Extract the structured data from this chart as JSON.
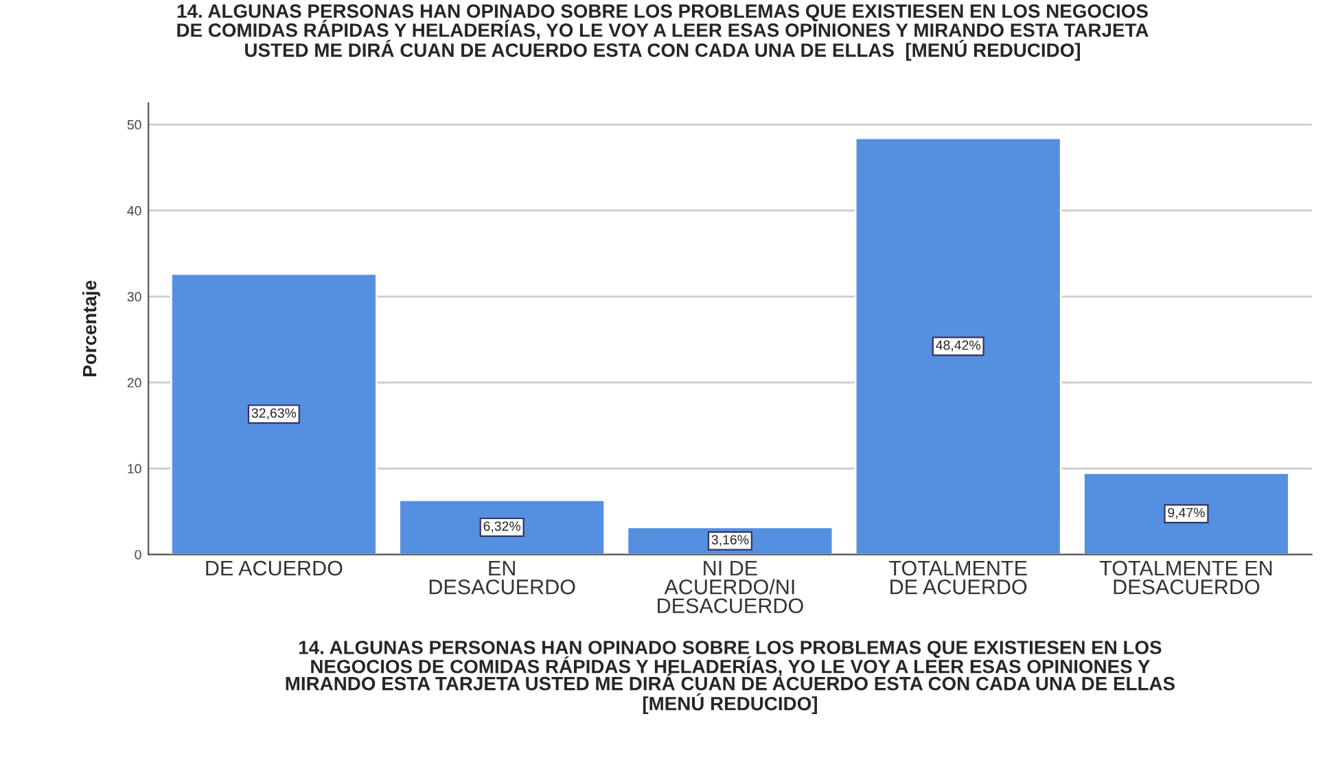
{
  "chart_data": {
    "type": "bar",
    "title": "14. ALGUNAS PERSONAS HAN OPINADO SOBRE LOS PROBLEMAS QUE EXISTIESEN EN LOS NEGOCIOS\nDE COMIDAS RÁPIDAS Y HELADERÍAS, YO LE VOY A LEER ESAS OPINIONES Y MIRANDO ESTA TARJETA\nUSTED ME DIRÁ CUAN DE ACUERDO ESTA CON CADA UNA DE ELLAS  [MENÚ REDUCIDO]",
    "xlabel": "14. ALGUNAS PERSONAS HAN OPINADO SOBRE LOS PROBLEMAS QUE EXISTIESEN EN LOS\nNEGOCIOS DE COMIDAS RÁPIDAS Y HELADERÍAS, YO LE VOY A LEER ESAS OPINIONES Y\nMIRANDO ESTA TARJETA USTED ME DIRÁ CUAN DE ACUERDO ESTA CON CADA UNA DE ELLAS\n[MENÚ REDUCIDO]",
    "ylabel": "Porcentaje",
    "categories": [
      "DE ACUERDO",
      "EN\nDESACUERDO",
      "NI DE\nACUERDO/NI\nDESACUERDO",
      "TOTALMENTE\nDE ACUERDO",
      "TOTALMENTE EN\nDESACUERDO"
    ],
    "values": [
      32.63,
      6.32,
      3.16,
      48.42,
      9.47
    ],
    "value_labels": [
      "32,63%",
      "6,32%",
      "3,16%",
      "48,42%",
      "9,47%"
    ],
    "color": "#5590e0",
    "ylim": [
      0,
      52.5
    ],
    "yticks": [
      0,
      10,
      20,
      30,
      40,
      50
    ],
    "grid": "y"
  }
}
